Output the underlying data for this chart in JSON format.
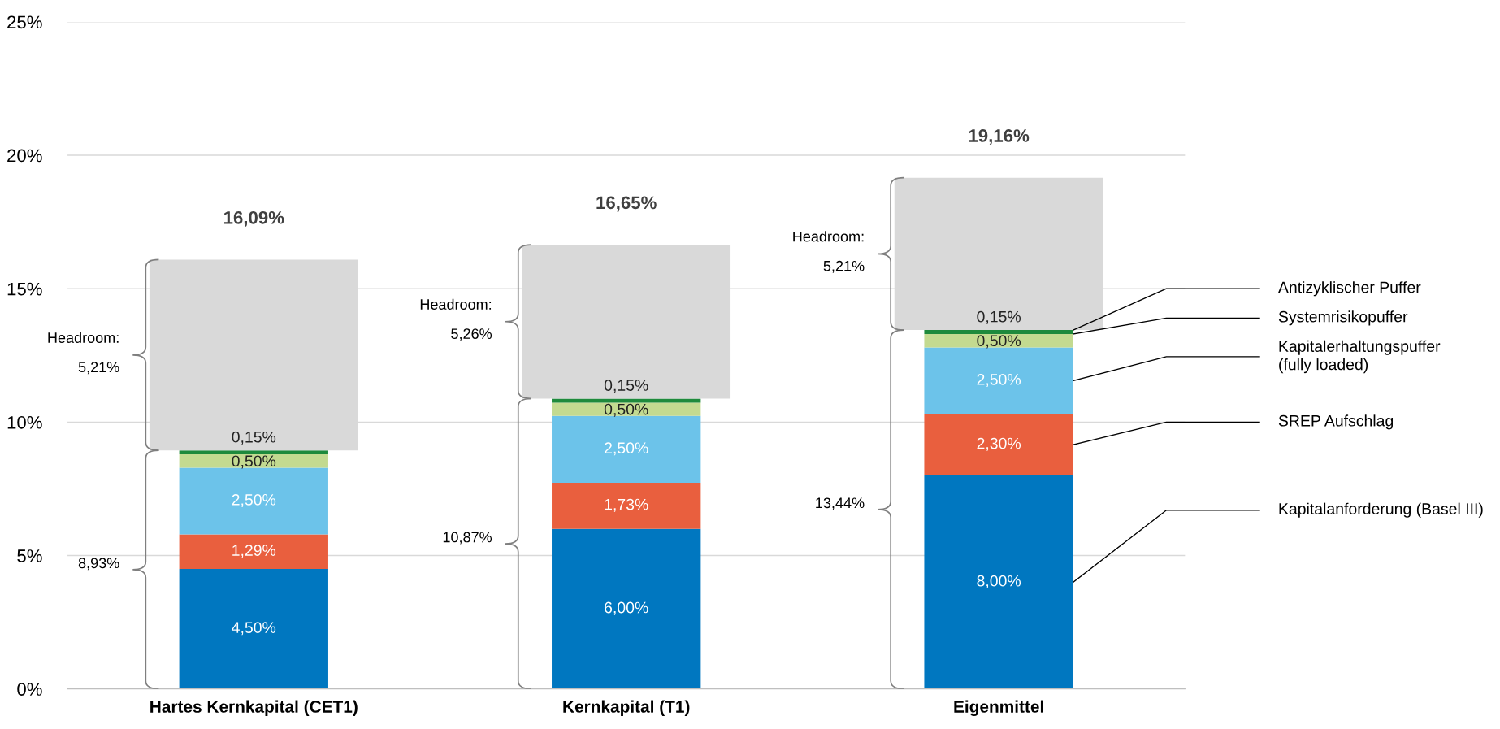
{
  "chart_data": {
    "type": "bar",
    "stacked": true,
    "categories": [
      "Hartes Kernkapital (CET1)",
      "Kernkapital (T1)",
      "Eigenmittel"
    ],
    "series": [
      {
        "name": "Kapitalanforderung (Basel III)",
        "color": "#0077c0",
        "values": [
          4.5,
          6.0,
          8.0
        ],
        "value_labels": [
          "4,50%",
          "6,00%",
          "8,00%"
        ]
      },
      {
        "name": "SREP Aufschlag",
        "color": "#e95f3e",
        "values": [
          1.29,
          1.73,
          2.3
        ],
        "value_labels": [
          "1,29%",
          "1,73%",
          "2,30%"
        ]
      },
      {
        "name": "Kapitalerhaltungspuffer\n(fully loaded)",
        "color": "#6cc3ea",
        "values": [
          2.5,
          2.5,
          2.5
        ],
        "value_labels": [
          "2,50%",
          "2,50%",
          "2,50%"
        ]
      },
      {
        "name": "Systemrisikopuffer",
        "color": "#c3da90",
        "values": [
          0.5,
          0.5,
          0.5
        ],
        "value_labels": [
          "0,50%",
          "0,50%",
          "0,50%"
        ]
      },
      {
        "name": "Antizyklischer Puffer",
        "color": "#1e8a3c",
        "values": [
          0.15,
          0.15,
          0.15
        ],
        "value_labels": [
          "0,15%",
          "0,15%",
          "0,15%"
        ]
      },
      {
        "color": "#d9d9d9",
        "values": [
          7.15,
          5.77,
          5.71
        ]
      }
    ],
    "totals": [
      "16,09%",
      "16,65%",
      "19,16%"
    ],
    "ylim": [
      0,
      25
    ],
    "yticks": [
      {
        "value": 0,
        "label": "0%"
      },
      {
        "value": 5,
        "label": "5%"
      },
      {
        "value": 10,
        "label": "10%"
      },
      {
        "value": 15,
        "label": "15%"
      },
      {
        "value": 20,
        "label": "20%"
      },
      {
        "value": 25,
        "label": "25%"
      }
    ],
    "grid": "y",
    "legend": false,
    "annotations": [
      "Headroom:",
      "5,21%",
      "8,93%",
      "Headroom:",
      "5,26%",
      "10,87%",
      "Headroom:",
      "5,21%",
      "13,44%"
    ]
  }
}
